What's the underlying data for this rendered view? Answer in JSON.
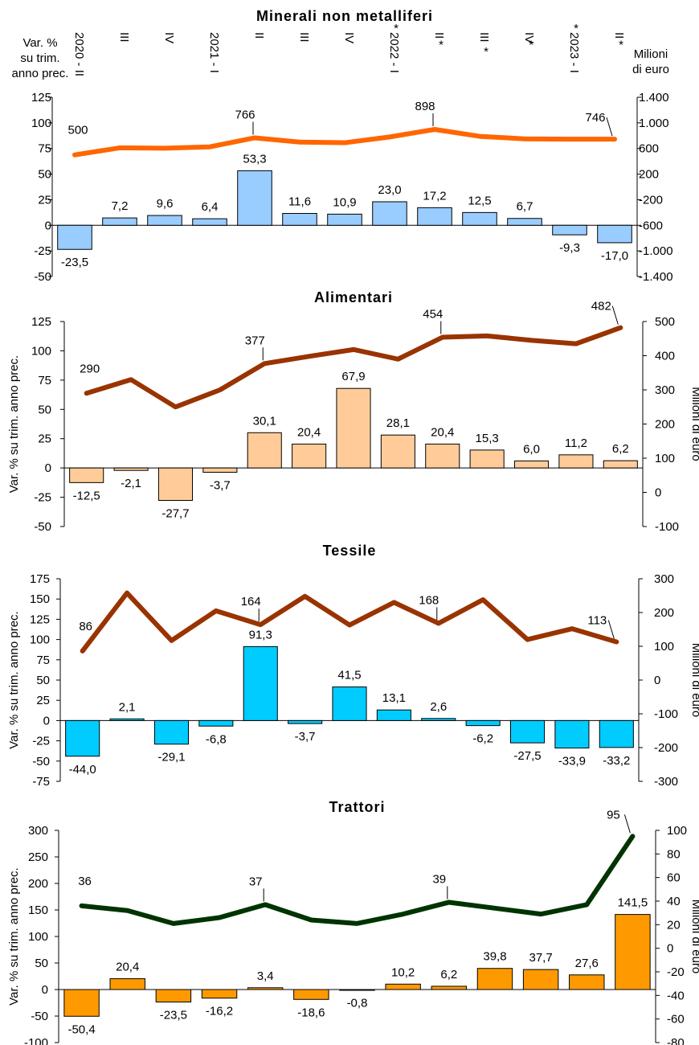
{
  "chart_data": [
    {
      "type": "bar",
      "title": "Minerali non metalliferi",
      "ylabel": "Var. % su trim. anno prec.",
      "ylabel_lines": [
        "Var. %",
        "su trim.",
        "anno prec."
      ],
      "y2label": "Milioni di euro",
      "y2label_lines": [
        "Milioni",
        "di euro"
      ],
      "categories": [
        "2020 - II",
        "III",
        "IV",
        "2021 - I",
        "II",
        "III",
        "IV",
        "2022 - I",
        "II",
        "III",
        "IV",
        "2023 - I",
        "II"
      ],
      "category_marks": [
        "",
        "",
        "",
        "",
        "",
        "",
        "",
        "*",
        "*",
        "*",
        "*",
        "*",
        "*"
      ],
      "ylim": [
        -50,
        125
      ],
      "yticks": [
        -50,
        -25,
        0,
        25,
        50,
        75,
        100,
        125
      ],
      "y2lim": [
        -1400,
        1400
      ],
      "y2ticks": [
        "-1.400",
        "-1.000",
        "-600",
        "-200",
        "200",
        "600",
        "1.000",
        "1.400"
      ],
      "y2tick_values": [
        -1400,
        -1000,
        -600,
        -200,
        200,
        600,
        1000,
        1400
      ],
      "bar_series": {
        "values": [
          -23.5,
          7.2,
          9.6,
          6.4,
          53.3,
          11.6,
          10.9,
          23.0,
          17.2,
          12.5,
          6.7,
          -9.3,
          -17.0
        ],
        "labels": [
          "-23,5",
          "7,2",
          "9,6",
          "6,4",
          "53,3",
          "11,6",
          "10,9",
          "23,0",
          "17,2",
          "12,5",
          "6,7",
          "-9,3",
          "-17,0"
        ],
        "color": "#99ccff"
      },
      "line_series": {
        "values": [
          500,
          610,
          605,
          625,
          766,
          700,
          690,
          780,
          898,
          790,
          750,
          745,
          746
        ],
        "labels": [
          "500",
          "",
          "",
          "",
          "766",
          "",
          "",
          "",
          "898",
          "",
          "",
          "",
          "746"
        ],
        "color": "#ff6600"
      }
    },
    {
      "type": "bar",
      "title": "Alimentari",
      "ylabel": "Var. % su trim. anno prec.",
      "y2label": "Milioni di euro",
      "categories": [
        "2020 - II",
        "III",
        "IV",
        "2021 - I",
        "II",
        "III",
        "IV",
        "2022 - I",
        "II",
        "III",
        "IV",
        "2023 - I",
        "II"
      ],
      "ylim": [
        -50,
        125
      ],
      "yticks": [
        -50,
        -25,
        0,
        25,
        50,
        75,
        100,
        125
      ],
      "y2lim": [
        -100,
        500
      ],
      "y2ticks": [
        "-100",
        "0",
        "100",
        "200",
        "300",
        "400",
        "500"
      ],
      "y2tick_values": [
        -100,
        0,
        100,
        200,
        300,
        400,
        500
      ],
      "bar_series": {
        "values": [
          -12.5,
          -2.1,
          -27.7,
          -3.7,
          30.1,
          20.4,
          67.9,
          28.1,
          20.4,
          15.3,
          6.0,
          11.2,
          6.2
        ],
        "labels": [
          "-12,5",
          "-2,1",
          "-27,7",
          "-3,7",
          "30,1",
          "20,4",
          "67,9",
          "28,1",
          "20,4",
          "15,3",
          "6,0",
          "11,2",
          "6,2"
        ],
        "color": "#ffcc99"
      },
      "line_series": {
        "values": [
          290,
          330,
          250,
          300,
          377,
          398,
          418,
          390,
          454,
          458,
          445,
          435,
          482
        ],
        "labels": [
          "290",
          "",
          "",
          "",
          "377",
          "",
          "",
          "",
          "454",
          "",
          "",
          "",
          "482"
        ],
        "color": "#993300"
      }
    },
    {
      "type": "bar",
      "title": "Tessile",
      "ylabel": "Var. % su trim. anno prec.",
      "y2label": "Milioni di euro",
      "categories": [
        "2020 - II",
        "III",
        "IV",
        "2021 - I",
        "II",
        "III",
        "IV",
        "2022 - I",
        "II",
        "III",
        "IV",
        "2023 - I",
        "II"
      ],
      "ylim": [
        -75,
        175
      ],
      "yticks": [
        -75,
        -50,
        -25,
        0,
        25,
        50,
        75,
        100,
        125,
        150,
        175
      ],
      "y2lim": [
        -300,
        300
      ],
      "y2ticks": [
        "-300",
        "-200",
        "-100",
        "0",
        "100",
        "200",
        "300"
      ],
      "y2tick_values": [
        -300,
        -200,
        -100,
        0,
        100,
        200,
        300
      ],
      "bar_series": {
        "values": [
          -44.0,
          2.1,
          -29.1,
          -6.8,
          91.3,
          -3.7,
          41.5,
          13.1,
          2.6,
          -6.2,
          -27.5,
          -33.9,
          -33.2
        ],
        "labels": [
          "-44,0",
          "2,1",
          "-29,1",
          "-6,8",
          "91,3",
          "-3,7",
          "41,5",
          "13,1",
          "2,6",
          "-6,2",
          "-27,5",
          "-33,9",
          "-33,2"
        ],
        "color": "#00ccff"
      },
      "line_series": {
        "values": [
          86,
          258,
          117,
          205,
          164,
          248,
          163,
          230,
          168,
          238,
          120,
          152,
          113
        ],
        "labels": [
          "86",
          "",
          "",
          "",
          "164",
          "",
          "",
          "",
          "168",
          "",
          "",
          "",
          "113"
        ],
        "color": "#993300"
      }
    },
    {
      "type": "bar",
      "title": "Trattori",
      "ylabel": "Var. % su trim. anno prec.",
      "y2label": "Milioni di euro",
      "categories": [
        "2020 - II",
        "III",
        "IV",
        "2021 - I",
        "II",
        "III",
        "IV",
        "2022 - I",
        "II",
        "III",
        "IV",
        "2023 - I",
        "II"
      ],
      "ylim": [
        -100,
        300
      ],
      "yticks": [
        -100,
        -50,
        0,
        50,
        100,
        150,
        200,
        250,
        300
      ],
      "y2lim": [
        -80,
        100
      ],
      "y2ticks": [
        "-80",
        "-60",
        "-40",
        "-20",
        "0",
        "20",
        "40",
        "60",
        "80",
        "100"
      ],
      "y2tick_values": [
        -80,
        -60,
        -40,
        -20,
        0,
        20,
        40,
        60,
        80,
        100
      ],
      "bar_series": {
        "values": [
          -50.4,
          20.4,
          -23.5,
          -16.2,
          3.4,
          -18.6,
          -0.8,
          10.2,
          6.2,
          39.8,
          37.7,
          27.6,
          141.5
        ],
        "labels": [
          "-50,4",
          "20,4",
          "-23,5",
          "-16,2",
          "3,4",
          "-18,6",
          "-0,8",
          "10,2",
          "6,2",
          "39,8",
          "37,7",
          "27,6",
          "141,5"
        ],
        "color": "#ff9900"
      },
      "line_series": {
        "values": [
          36,
          32,
          21,
          26,
          37,
          24,
          21,
          29,
          39,
          34,
          29,
          37,
          95
        ],
        "labels": [
          "36",
          "",
          "",
          "",
          "37",
          "",
          "",
          "",
          "39",
          "",
          "",
          "",
          "95"
        ],
        "color": "#003300"
      }
    }
  ]
}
